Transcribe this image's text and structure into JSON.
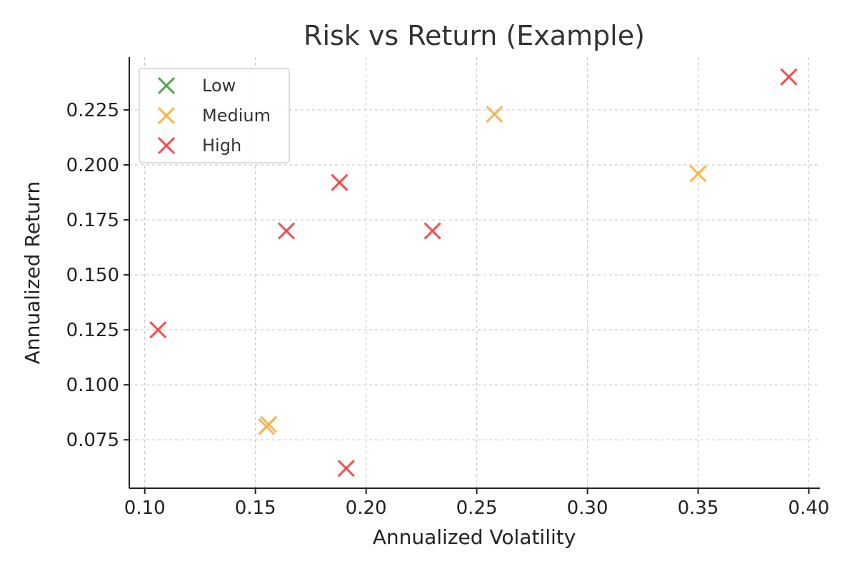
{
  "chart_data": {
    "type": "scatter",
    "title": "Risk vs Return (Example)",
    "xlabel": "Annualized Volatility",
    "ylabel": "Annualized Return",
    "xlim": [
      0.093,
      0.405
    ],
    "ylim": [
      0.053,
      0.249
    ],
    "xticks": [
      "0.10",
      "0.15",
      "0.20",
      "0.25",
      "0.30",
      "0.35",
      "0.40"
    ],
    "yticks": [
      "0.075",
      "0.100",
      "0.125",
      "0.150",
      "0.175",
      "0.200",
      "0.225"
    ],
    "grid": true,
    "legend_position": "top-left",
    "marker": "x",
    "series": [
      {
        "name": "Low",
        "color": "#4a9e4a",
        "points": []
      },
      {
        "name": "Medium",
        "color": "#f5b041",
        "points": [
          {
            "x": 0.155,
            "y": 0.081
          },
          {
            "x": 0.156,
            "y": 0.082
          },
          {
            "x": 0.258,
            "y": 0.223
          },
          {
            "x": 0.35,
            "y": 0.196
          }
        ]
      },
      {
        "name": "High",
        "color": "#ee4444",
        "points": [
          {
            "x": 0.106,
            "y": 0.125
          },
          {
            "x": 0.164,
            "y": 0.17
          },
          {
            "x": 0.188,
            "y": 0.192
          },
          {
            "x": 0.191,
            "y": 0.062
          },
          {
            "x": 0.23,
            "y": 0.17
          },
          {
            "x": 0.391,
            "y": 0.24
          }
        ]
      }
    ]
  }
}
